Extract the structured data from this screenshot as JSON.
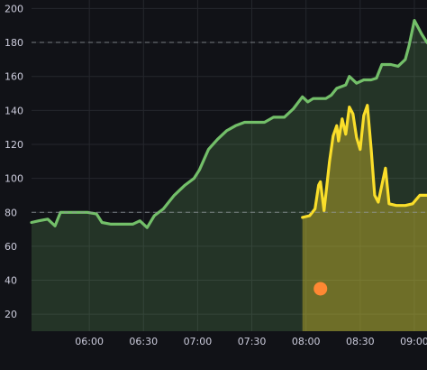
{
  "chart_data": {
    "type": "area",
    "background": "#111217",
    "grid": true,
    "legend": "none",
    "x_ticks": [
      "06:00",
      "06:30",
      "07:00",
      "07:30",
      "08:00",
      "08:30",
      "09:00"
    ],
    "y_ticks": [
      20,
      40,
      60,
      80,
      100,
      120,
      140,
      160,
      180,
      200
    ],
    "xlim": [
      "05:28",
      "09:07"
    ],
    "ylim": [
      10,
      205
    ],
    "thresholds": [
      {
        "value": 80,
        "color": "#8e9399"
      },
      {
        "value": 180,
        "color": "#8e9399"
      }
    ],
    "series": [
      {
        "color": "#73bf69",
        "fill": "#73bf69",
        "points": [
          [
            "05:28",
            74
          ],
          [
            "05:32",
            75
          ],
          [
            "05:37",
            76
          ],
          [
            "05:41",
            72
          ],
          [
            "05:44",
            80
          ],
          [
            "05:48",
            80
          ],
          [
            "05:55",
            80
          ],
          [
            "05:59",
            80
          ],
          [
            "06:04",
            79
          ],
          [
            "06:07",
            74
          ],
          [
            "06:12",
            73
          ],
          [
            "06:18",
            73
          ],
          [
            "06:24",
            73
          ],
          [
            "06:28",
            75
          ],
          [
            "06:32",
            71
          ],
          [
            "06:36",
            78
          ],
          [
            "06:41",
            82
          ],
          [
            "06:47",
            90
          ],
          [
            "06:53",
            96
          ],
          [
            "06:58",
            100
          ],
          [
            "07:01",
            105
          ],
          [
            "07:06",
            117
          ],
          [
            "07:11",
            123
          ],
          [
            "07:16",
            128
          ],
          [
            "07:21",
            131
          ],
          [
            "07:26",
            133
          ],
          [
            "07:32",
            133
          ],
          [
            "07:37",
            133
          ],
          [
            "07:42",
            136
          ],
          [
            "07:48",
            136
          ],
          [
            "07:53",
            141
          ],
          [
            "07:58",
            148
          ],
          [
            "08:01",
            145
          ],
          [
            "08:04",
            147
          ],
          [
            "08:08",
            147
          ],
          [
            "08:11",
            147
          ],
          [
            "08:14",
            149
          ],
          [
            "08:17",
            153
          ],
          [
            "08:22",
            155
          ],
          [
            "08:24",
            160
          ],
          [
            "08:28",
            156
          ],
          [
            "08:32",
            158
          ],
          [
            "08:36",
            158
          ],
          [
            "08:39",
            159
          ],
          [
            "08:42",
            167
          ],
          [
            "08:47",
            167
          ],
          [
            "08:51",
            166
          ],
          [
            "08:55",
            170
          ],
          [
            "08:57",
            178
          ],
          [
            "09:00",
            193
          ],
          [
            "09:04",
            185
          ],
          [
            "09:07",
            180
          ]
        ]
      },
      {
        "color": "#fade2a",
        "fill": "#c9b62a",
        "points": [
          [
            "07:58",
            77
          ],
          [
            "08:02",
            78
          ],
          [
            "08:05",
            82
          ],
          [
            "08:07",
            96
          ],
          [
            "08:08",
            98
          ],
          [
            "08:10",
            81
          ],
          [
            "08:13",
            110
          ],
          [
            "08:15",
            125
          ],
          [
            "08:17",
            131
          ],
          [
            "08:18",
            122
          ],
          [
            "08:20",
            135
          ],
          [
            "08:22",
            126
          ],
          [
            "08:24",
            142
          ],
          [
            "08:26",
            138
          ],
          [
            "08:28",
            124
          ],
          [
            "08:30",
            117
          ],
          [
            "08:32",
            137
          ],
          [
            "08:34",
            143
          ],
          [
            "08:36",
            118
          ],
          [
            "08:38",
            90
          ],
          [
            "08:40",
            86
          ],
          [
            "08:42",
            96
          ],
          [
            "08:44",
            106
          ],
          [
            "08:46",
            85
          ],
          [
            "08:50",
            84
          ],
          [
            "08:55",
            84
          ],
          [
            "08:59",
            85
          ],
          [
            "09:03",
            90
          ],
          [
            "09:07",
            90
          ]
        ]
      }
    ],
    "annotations": [
      {
        "type": "marker",
        "x": "08:08",
        "y": 35,
        "color": "#ff8833"
      }
    ]
  }
}
